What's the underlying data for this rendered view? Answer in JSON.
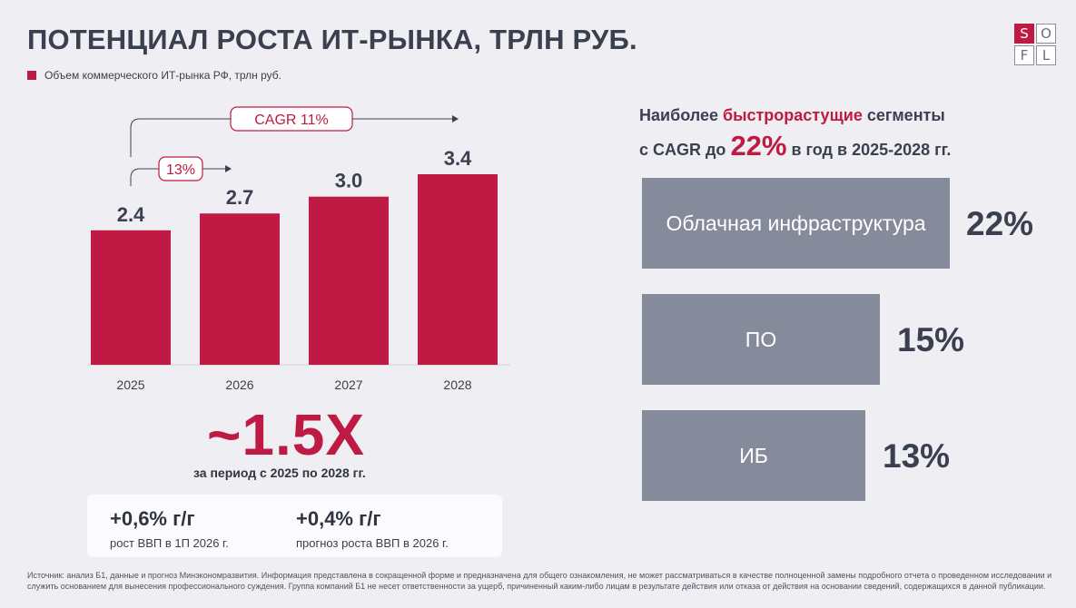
{
  "title": "ПОТЕНЦИАЛ РОСТА ИТ-РЫНКА, ТРЛН РУБ.",
  "logo": [
    "S",
    "O",
    "F",
    "L"
  ],
  "colors": {
    "accent": "#bf1a44",
    "segment": "#868b9c",
    "text": "#3b4050"
  },
  "chart_data": {
    "type": "bar",
    "categories": [
      "2025",
      "2026",
      "2027",
      "2028"
    ],
    "series": [
      {
        "name": "Объем коммерческого ИТ-рынка РФ, трлн руб.",
        "values": [
          2.4,
          2.7,
          3.0,
          3.4
        ]
      }
    ],
    "value_labels": [
      "2.4",
      "2.7",
      "3.0",
      "3.4"
    ],
    "ylim": [
      0,
      3.4
    ],
    "grid": false,
    "legend": "top-left",
    "annotations": [
      {
        "text": "CAGR 11%",
        "from": "2025",
        "to": "2028"
      },
      {
        "text": "13%",
        "from": "2025",
        "to": "2026"
      }
    ]
  },
  "summary": {
    "multiplier": "~1.5X",
    "period": "за период с 2025 по 2028 гг."
  },
  "gdp": [
    {
      "value": "+0,6% г/г",
      "label": "рост ВВП в 1П 2026 г."
    },
    {
      "value": "+0,4% г/г",
      "label": "прогноз роста ВВП в 2026 г."
    }
  ],
  "segments_header": {
    "part1": "Наиболее ",
    "accent": "быстрорастущие",
    "part2": " сегменты",
    "part3": "с CAGR до ",
    "big": "22%",
    "part4": " в год в 2025-2028 гг."
  },
  "segments": [
    {
      "name": "Облачная инфраструктура",
      "cagr": "22%",
      "value": 22
    },
    {
      "name": "ПО",
      "cagr": "15%",
      "value": 15
    },
    {
      "name": "ИБ",
      "cagr": "13%",
      "value": 13
    }
  ],
  "footnote": "Источник: анализ Б1, данные и прогноз Минэкономразвития. Информация представлена в сокращенной форме и предназначена для общего ознакомления, не может рассматриваться в качестве полноценной замены подробного отчета о проведенном исследовании и служить основанием для вынесения профессионального суждения. Группа компаний Б1 не несет ответственности за ущерб, причиненный каким-либо лицам в результате действия или отказа от действия на основании сведений, содержащихся в данной публикации."
}
